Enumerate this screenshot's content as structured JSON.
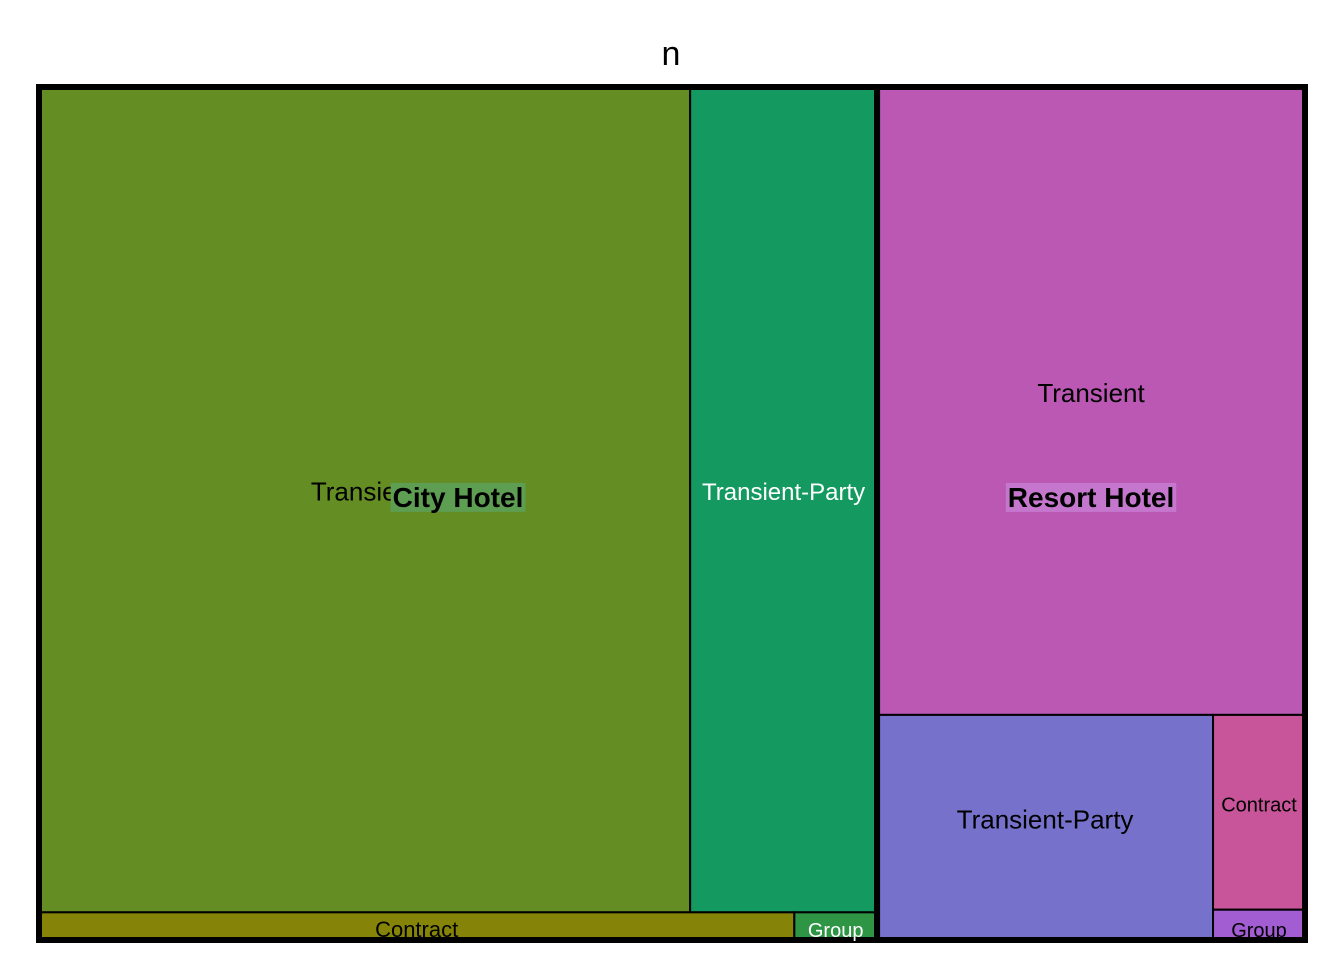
{
  "chart_data": {
    "type": "treemap",
    "title": "n",
    "groups": [
      {
        "name": "City Hotel",
        "color": "#5e9e52",
        "children": [
          {
            "name": "Transient",
            "value": 54000,
            "color": "#648d24",
            "label_color": "#000000"
          },
          {
            "name": "Transient-Party",
            "value": 15500,
            "color": "#149960",
            "label_color": "#ffffff"
          },
          {
            "name": "Contract",
            "value": 2100,
            "color": "#858409",
            "label_color": "#000000"
          },
          {
            "name": "Group",
            "value": 230,
            "color": "#2e9545",
            "label_color": "#ffffff"
          }
        ]
      },
      {
        "name": "Resort Hotel",
        "color": "#c577cd",
        "children": [
          {
            "name": "Transient",
            "value": 27000,
            "color": "#ba58b4",
            "label_color": "#000000"
          },
          {
            "name": "Transient-Party",
            "value": 7600,
            "color": "#7672cc",
            "label_color": "#000000"
          },
          {
            "name": "Contract",
            "value": 1800,
            "color": "#c85499",
            "label_color": "#000000"
          },
          {
            "name": "Group",
            "value": 280,
            "color": "#a35dd2",
            "label_color": "#000000"
          }
        ]
      }
    ]
  }
}
